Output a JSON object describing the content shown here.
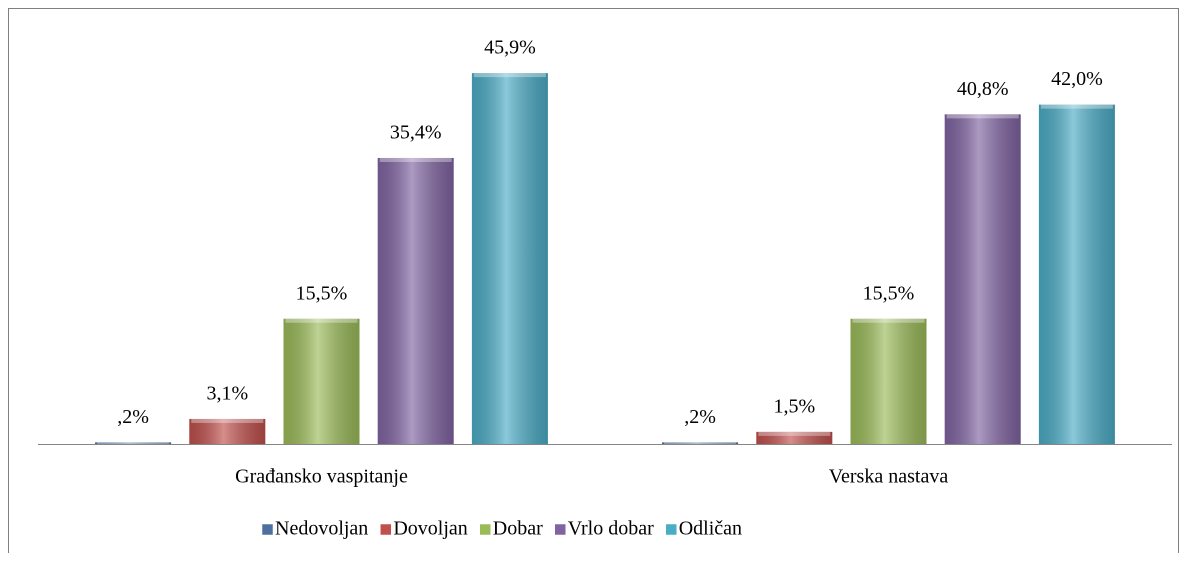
{
  "chart_data": {
    "type": "bar",
    "categories": [
      "Građansko vaspitanje",
      "Verska nastava"
    ],
    "ylim": [
      0,
      50
    ],
    "series": [
      {
        "name": "Nedovoljan",
        "color": "#4f6fa0",
        "values": [
          0.2,
          0.2
        ],
        "value_labels": [
          ",2%",
          ",2%"
        ]
      },
      {
        "name": "Dovoljan",
        "color": "#c0504d",
        "values": [
          3.1,
          1.5
        ],
        "value_labels": [
          "3,1%",
          "1,5%"
        ]
      },
      {
        "name": "Dobar",
        "color": "#9bbb59",
        "values": [
          15.5,
          15.5
        ],
        "value_labels": [
          "15,5%",
          "15,5%"
        ]
      },
      {
        "name": "Vrlo dobar",
        "color": "#8064a2",
        "values": [
          35.4,
          40.8
        ],
        "value_labels": [
          "35,4%",
          "40,8%"
        ]
      },
      {
        "name": "Odličan",
        "color": "#4bacc6",
        "values": [
          45.9,
          42.0
        ],
        "value_labels": [
          "45,9%",
          "42,0%"
        ]
      }
    ]
  }
}
